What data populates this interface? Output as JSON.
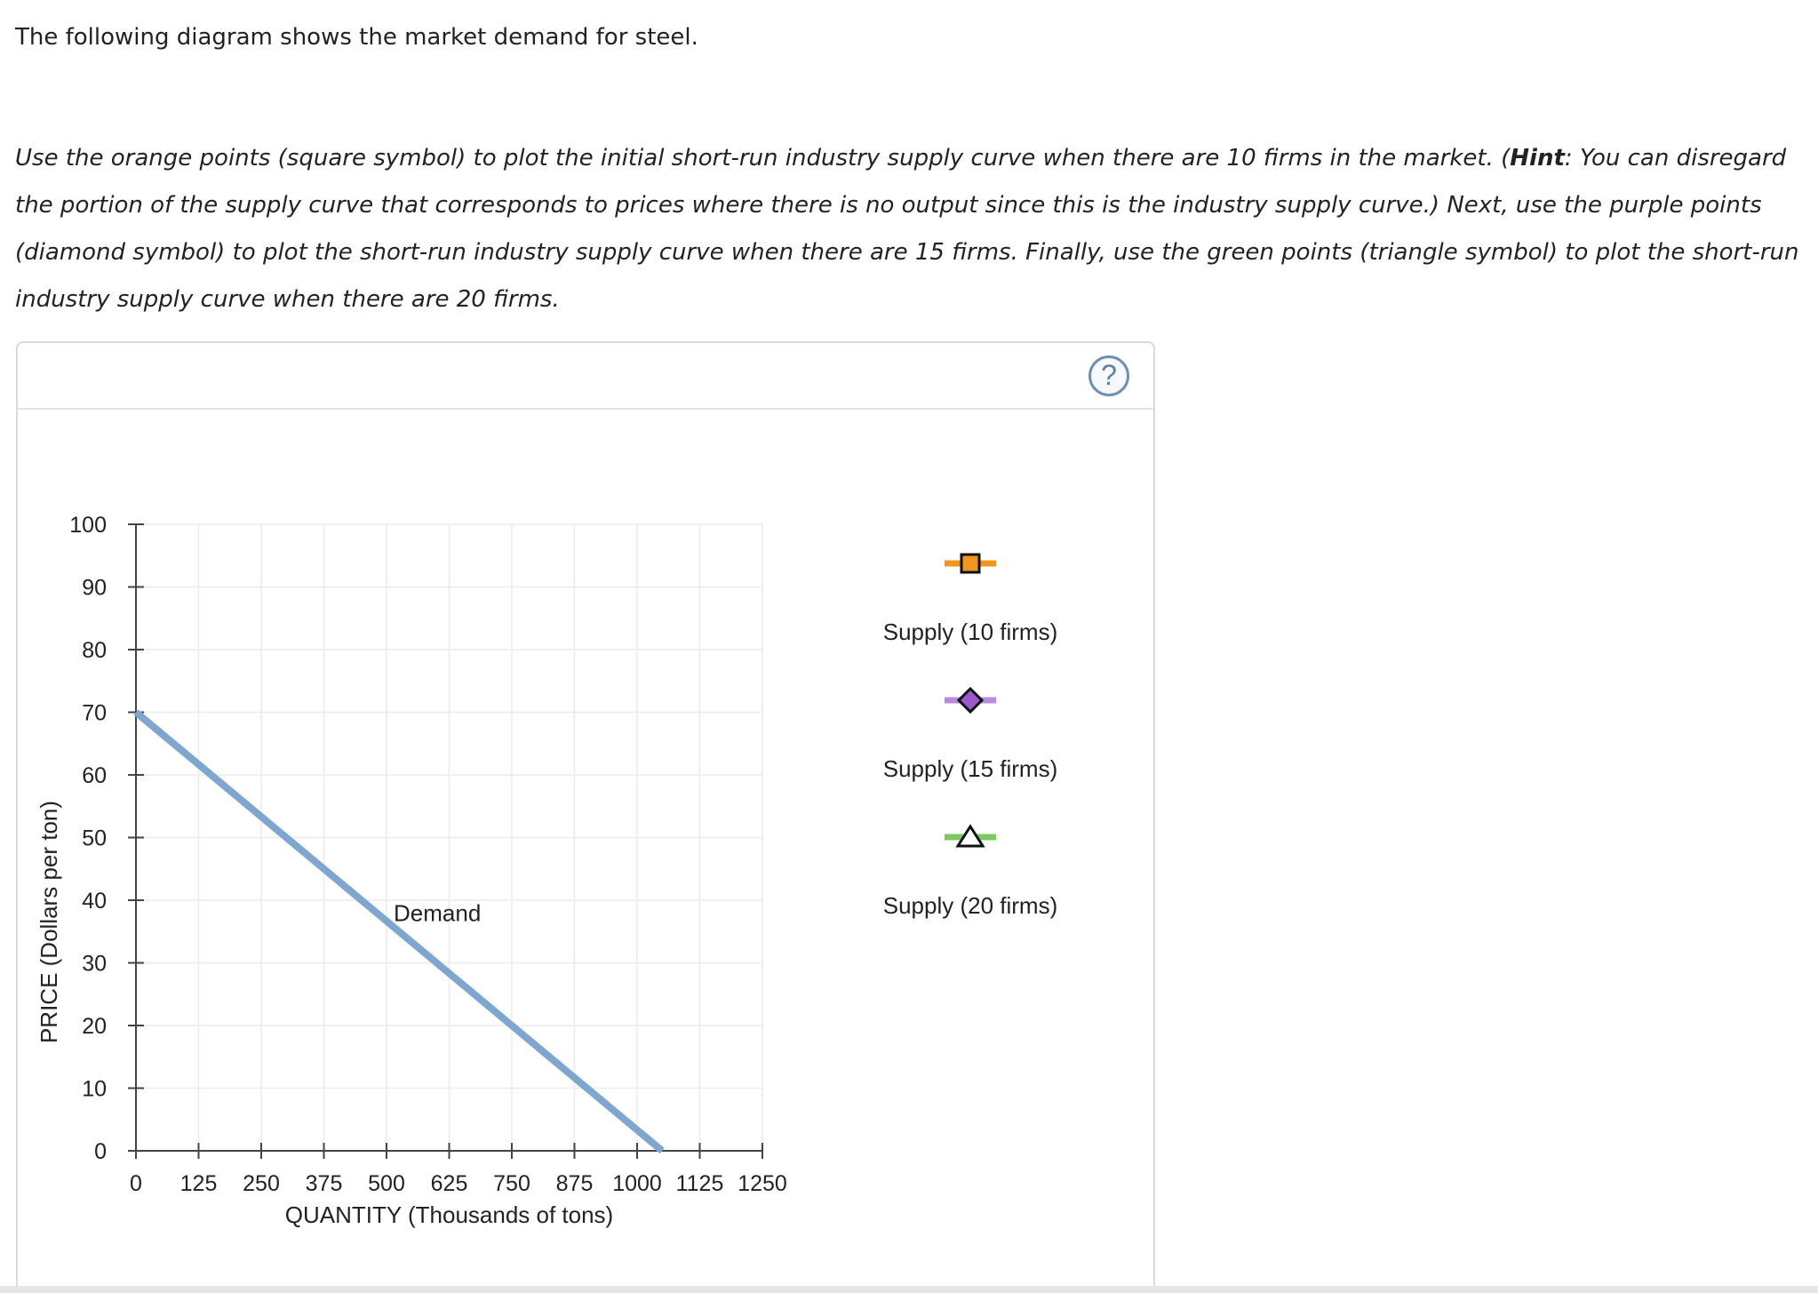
{
  "question": {
    "intro": "The following diagram shows the market demand for steel.",
    "instructions_part1": "Use the orange points (square symbol) to plot the initial short-run industry supply curve when there are 10 firms in the market. (",
    "hint_label": "Hint",
    "instructions_part2": ": You can disregard the portion of the supply curve that corresponds to prices where there is no output since this is the industry supply curve.) Next, use the purple points (diamond symbol) to plot the short-run industry supply curve when there are 15 firms. Finally, use the green points (triangle symbol) to plot the short-run industry supply curve when there are 20 firms."
  },
  "help": {
    "label": "?"
  },
  "chart_data": {
    "type": "line",
    "xlabel": "QUANTITY (Thousands of tons)",
    "ylabel": "PRICE (Dollars per ton)",
    "xlim": [
      0,
      1250
    ],
    "ylim": [
      0,
      100
    ],
    "xticks": [
      0,
      125,
      250,
      375,
      500,
      625,
      750,
      875,
      1000,
      1125,
      1250
    ],
    "yticks": [
      0,
      10,
      20,
      30,
      40,
      50,
      60,
      70,
      80,
      90,
      100
    ],
    "grid": true,
    "series": [
      {
        "name": "Demand",
        "color": "#7fa6d0",
        "points": [
          [
            0,
            70
          ],
          [
            1050,
            0
          ]
        ],
        "label_at": [
          500,
          35
        ]
      }
    ],
    "legend_placement": "right",
    "palette": [
      {
        "label": "Supply (10 firms)",
        "symbol": "square",
        "color": "#f0961e",
        "line_color": "#f0961e"
      },
      {
        "label": "Supply (15 firms)",
        "symbol": "diamond",
        "color": "#9b59c9",
        "line_color": "#b98be0"
      },
      {
        "label": "Supply (20 firms)",
        "symbol": "triangle",
        "color": "#ffffff",
        "line_color": "#7cc964"
      }
    ]
  }
}
